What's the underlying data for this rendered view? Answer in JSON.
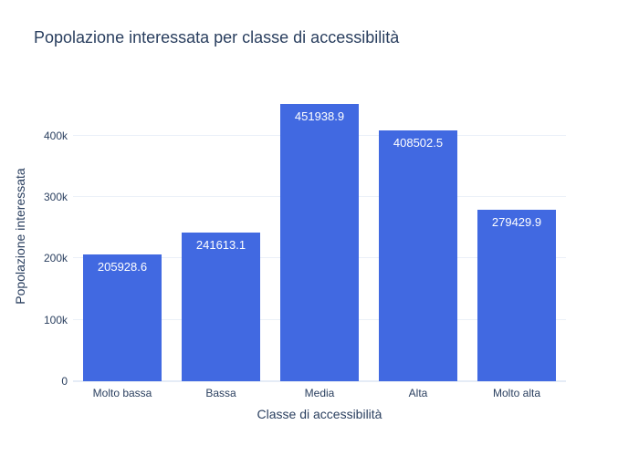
{
  "chart_data": {
    "type": "bar",
    "title": "Popolazione interessata per classe di accessibilità",
    "xlabel": "Classe di accessibilità",
    "ylabel": "Popolazione interessata",
    "categories": [
      "Molto bassa",
      "Bassa",
      "Media",
      "Alta",
      "Molto alta"
    ],
    "values": [
      205928.6,
      241613.1,
      451938.9,
      408502.5,
      279429.9
    ],
    "value_labels": [
      "205928.6",
      "241613.1",
      "451938.9",
      "408502.5",
      "279429.9"
    ],
    "yticks": [
      0,
      100000,
      200000,
      300000,
      400000
    ],
    "ytick_labels": [
      "0",
      "100k",
      "200k",
      "300k",
      "400k"
    ],
    "ylim": [
      0,
      472500
    ],
    "grid": true,
    "legend": false,
    "bar_width_fraction": 0.8,
    "value_label_position": "inside-top",
    "colors": {
      "bar": "#4169e1",
      "bar_label_text": "#ffffff",
      "text": "#2a3f5f",
      "grid": "#ebf0f8",
      "zeroline": "#e5ecf6",
      "background": "#ffffff"
    }
  }
}
